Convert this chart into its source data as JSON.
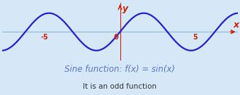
{
  "bg_color": "#d6e8f7",
  "plot_bg_color": "#d6e8f7",
  "grid_color": "#b8d0e8",
  "sine_color": "#2020cc",
  "xaxis_color": "#88b8d8",
  "yaxis_color": "#cc2200",
  "arrow_color": "#cc2200",
  "tick_label_color": "#cc2200",
  "origin_label_color": "#cc2200",
  "title_text": "Sine function: f(x) = sin(x)",
  "subtitle_text": "It is an odd function",
  "title_color": "#5577cc",
  "subtitle_color": "#333333",
  "xlim": [
    -7.8,
    7.8
  ],
  "ylim": [
    -1.55,
    1.55
  ],
  "x_ticks": [
    -5,
    5
  ],
  "x_label": "x",
  "y_label": "y",
  "title_fontsize": 8.5,
  "subtitle_fontsize": 7.5,
  "tick_fontsize": 7,
  "axis_label_fontsize": 9,
  "sine_linewidth": 1.6
}
